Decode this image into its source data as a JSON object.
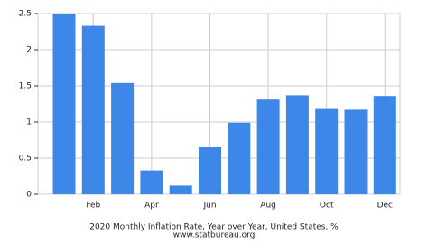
{
  "chart_data": {
    "type": "bar",
    "title": "2020 Monthly Inflation Rate, Year over Year, United States, %",
    "subtitle": "www.statbureau.org",
    "categories": [
      null,
      "Feb",
      null,
      "Apr",
      null,
      "Jun",
      null,
      "Aug",
      null,
      "Oct",
      null,
      "Dec"
    ],
    "values": [
      2.49,
      2.33,
      1.54,
      0.33,
      0.12,
      0.65,
      0.99,
      1.31,
      1.37,
      1.18,
      1.17,
      1.36
    ],
    "color": "#3d87e8",
    "ylim": [
      0,
      2.5
    ],
    "yticks": [
      0,
      0.5,
      1,
      1.5,
      2,
      2.5
    ],
    "grid": true
  }
}
